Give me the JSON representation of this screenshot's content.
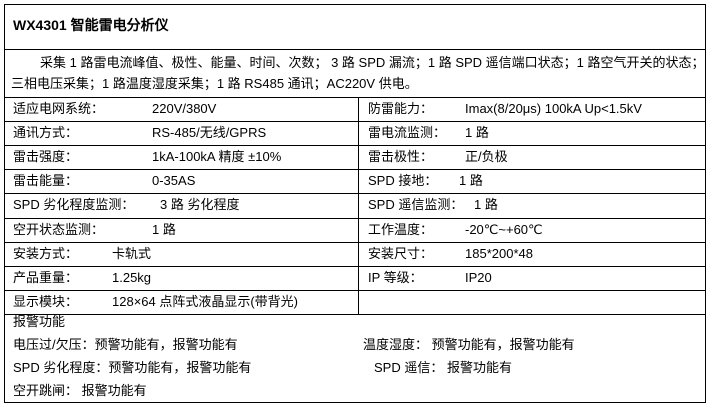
{
  "title": "WX4301  智能雷电分析仪",
  "description": {
    "line1": "采集 1 路雷电流峰值、极性、能量、时间、次数； 3 路 SPD 漏流；1 路 SPD 遥信端口状态；1 路空气开关的状态；",
    "line2": "三相电压采集；1 路温度湿度采集；1 路 RS485 通讯；AC220V 供电。"
  },
  "specs": [
    {
      "left_label": "适应电网系统：",
      "left_value": "220V/380V",
      "right_label": "防雷能力：",
      "right_value": "Imax(8/20μs) 100kA Up<1.5kV"
    },
    {
      "left_label": "通讯方式：",
      "left_value": "RS-485/无线/GPRS",
      "right_label": "雷电流监测：",
      "right_value": "1 路"
    },
    {
      "left_label": "雷击强度：",
      "left_value": "1kA-100kA      精度   ±10%",
      "right_label": "雷击极性：",
      "right_value": "正/负极"
    },
    {
      "left_label": "雷击能量：",
      "left_value": "0-35AS",
      "right_label": "SPD 接地：",
      "right_value": "1 路"
    },
    {
      "left_label": "SPD 劣化程度监测：",
      "left_value": "3 路   劣化程度",
      "right_label": "SPD 遥信监测：",
      "right_value": "1 路"
    },
    {
      "left_label": "空开状态监测：",
      "left_value": "1 路",
      "right_label": "工作温度：",
      "right_value": "-20℃~+60℃"
    },
    {
      "left_label": "安装方式：",
      "left_value": "卡轨式",
      "right_label": "安装尺寸：",
      "right_value": "185*200*48"
    },
    {
      "left_label": "产品重量：",
      "left_value": "1.25kg",
      "right_label": "IP 等级：",
      "right_value": "IP20"
    },
    {
      "left_label": "显示模块：",
      "left_value": "128×64 点阵式液晶显示(带背光)",
      "right_label": "",
      "right_value": ""
    }
  ],
  "alarm": {
    "heading": "报警功能",
    "items": [
      {
        "label": "电压过/欠压：预警功能有，报警功能有"
      },
      {
        "label": "温度湿度：  预警功能有，报警功能有"
      },
      {
        "label": "SPD 劣化程度：预警功能有，报警功能有"
      },
      {
        "label": "SPD 遥信：   报警功能有"
      },
      {
        "label": "空开跳闸：      报警功能有"
      }
    ]
  }
}
